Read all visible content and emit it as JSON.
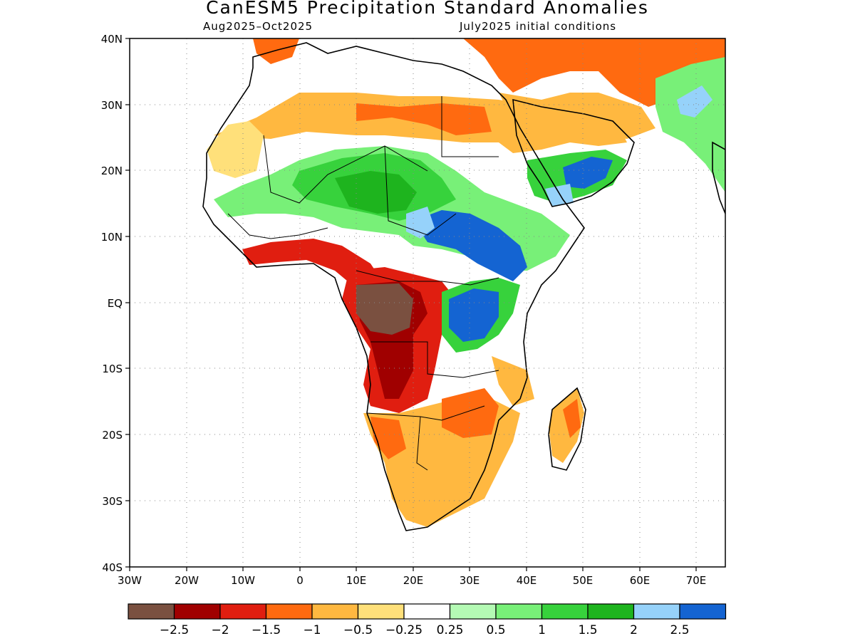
{
  "title": "CanESM5 Precipitation Standard Anomalies",
  "subtitle_left": "Aug2025–Oct2025",
  "subtitle_right": "July2025 initial conditions",
  "lat_labels": [
    "40N",
    "30N",
    "20N",
    "10N",
    "EQ",
    "10S",
    "20S",
    "30S",
    "40S"
  ],
  "lon_labels": [
    "30W",
    "20W",
    "10W",
    "0",
    "10E",
    "20E",
    "30E",
    "40E",
    "50E",
    "60E",
    "70E"
  ],
  "legend": {
    "colors": [
      "#7a5040",
      "#a00000",
      "#e01e10",
      "#ff6a10",
      "#ffb840",
      "#ffe07a",
      "#ffffff",
      "#b4fab4",
      "#78f078",
      "#37d23c",
      "#1eb41e",
      "#96d2fa",
      "#1464d2"
    ],
    "labels": [
      "−2.5",
      "−2",
      "−1.5",
      "−1",
      "−0.5",
      "−0.25",
      "0.25",
      "0.5",
      "1",
      "1.5",
      "2",
      "2.5"
    ]
  }
}
